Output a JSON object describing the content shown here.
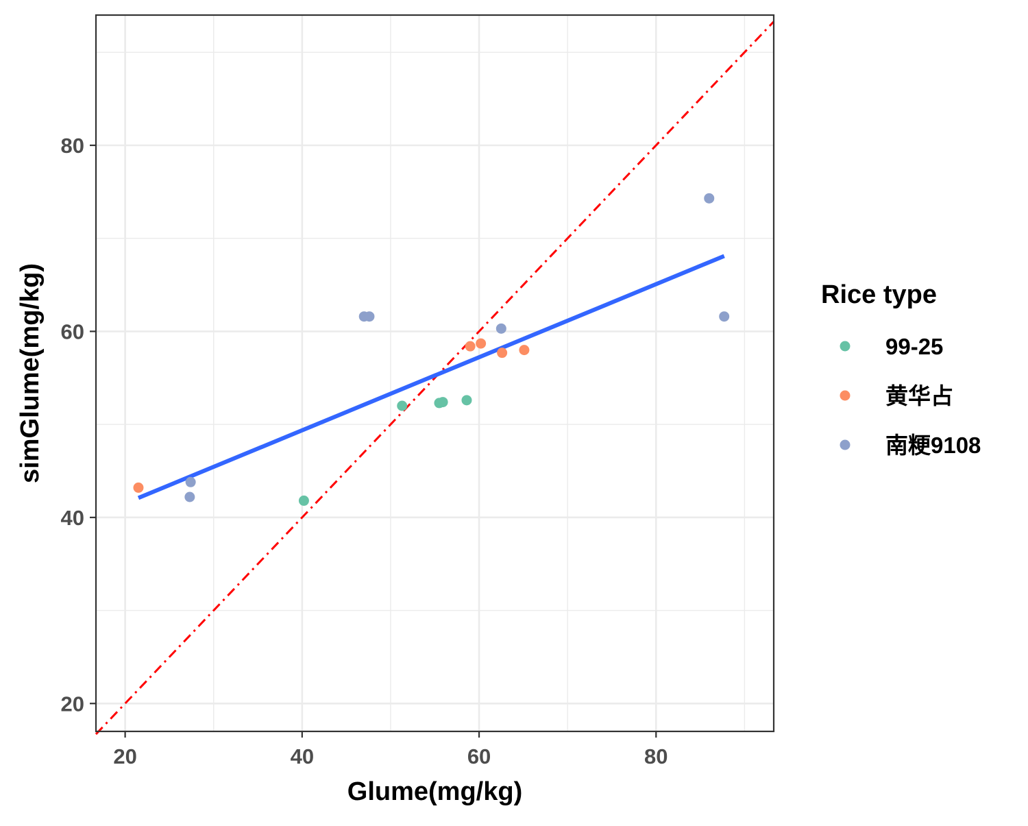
{
  "chart_data": {
    "type": "scatter",
    "xlabel": "Glume(mg/kg)",
    "ylabel": "simGlume(mg/kg)",
    "xlim": [
      16.7,
      93.3
    ],
    "ylim": [
      17,
      94
    ],
    "x_ticks": [
      20,
      40,
      60,
      80
    ],
    "y_ticks": [
      20,
      40,
      60,
      80
    ],
    "x_tick_labels": [
      "20",
      "40",
      "60",
      "80"
    ],
    "y_tick_labels": [
      "20",
      "40",
      "60",
      "80"
    ],
    "grid": true,
    "legend": {
      "title": "Rice type",
      "placement": "right"
    },
    "series": [
      {
        "name": "99-25",
        "color": "#66c2a5",
        "points": [
          {
            "x": 40.2,
            "y": 41.8
          },
          {
            "x": 51.3,
            "y": 52.0
          },
          {
            "x": 55.5,
            "y": 52.3
          },
          {
            "x": 55.9,
            "y": 52.4
          },
          {
            "x": 58.6,
            "y": 52.6
          }
        ]
      },
      {
        "name": "黄华占",
        "color": "#fc8d62",
        "points": [
          {
            "x": 21.5,
            "y": 43.2
          },
          {
            "x": 59.0,
            "y": 58.4
          },
          {
            "x": 60.2,
            "y": 58.7
          },
          {
            "x": 62.6,
            "y": 57.7
          },
          {
            "x": 65.1,
            "y": 58.0
          }
        ]
      },
      {
        "name": "南粳9108",
        "color": "#8da0cb",
        "points": [
          {
            "x": 27.3,
            "y": 42.2
          },
          {
            "x": 27.4,
            "y": 43.8
          },
          {
            "x": 47.0,
            "y": 61.6
          },
          {
            "x": 47.6,
            "y": 61.6
          },
          {
            "x": 62.5,
            "y": 60.3
          },
          {
            "x": 86.0,
            "y": 74.3
          },
          {
            "x": 87.7,
            "y": 61.6
          }
        ]
      }
    ],
    "fit_line": {
      "x": [
        21.5,
        87.7
      ],
      "y": [
        42.1,
        68.1
      ],
      "color": "#3366ff"
    },
    "identity_line": {
      "x": [
        16.7,
        93.3
      ],
      "y": [
        16.7,
        93.3
      ],
      "color": "#ff0000"
    }
  }
}
